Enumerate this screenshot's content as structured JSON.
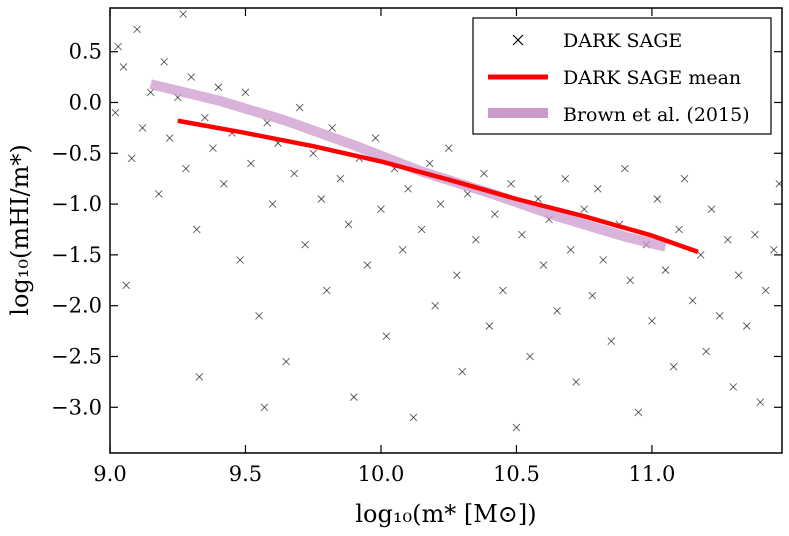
{
  "chart_data": {
    "type": "scatter",
    "xlabel": "log₁₀(m* [M⊙])",
    "ylabel": "log₁₀(mHI/m*)",
    "xlim": [
      9.0,
      11.48
    ],
    "ylim": [
      -3.45,
      0.93
    ],
    "xticks": [
      9.0,
      9.5,
      10.0,
      10.5,
      11.0
    ],
    "xtick_labels": [
      "9.0",
      "9.5",
      "10.0",
      "10.5",
      "11.0"
    ],
    "yticks": [
      0.5,
      0.0,
      -0.5,
      -1.0,
      -1.5,
      -2.0,
      -2.5,
      -3.0
    ],
    "ytick_labels": [
      "0.5",
      "0.0",
      "−0.5",
      "−1.0",
      "−1.5",
      "−2.0",
      "−2.5",
      "−3.0"
    ],
    "grid": false,
    "legend_location": "top-right",
    "series": [
      {
        "name": "Dark Sage",
        "legend_label": "DARK SAGE",
        "kind": "scatter",
        "marker": "x",
        "color": "#000000",
        "sample_points": [
          [
            9.02,
            -0.1
          ],
          [
            9.05,
            0.35
          ],
          [
            9.08,
            -0.55
          ],
          [
            9.1,
            0.72
          ],
          [
            9.12,
            -0.25
          ],
          [
            9.15,
            0.1
          ],
          [
            9.18,
            -0.9
          ],
          [
            9.2,
            0.4
          ],
          [
            9.22,
            -0.35
          ],
          [
            9.25,
            0.05
          ],
          [
            9.28,
            -0.65
          ],
          [
            9.3,
            0.25
          ],
          [
            9.32,
            -1.25
          ],
          [
            9.35,
            -0.15
          ],
          [
            9.38,
            -0.45
          ],
          [
            9.4,
            0.15
          ],
          [
            9.42,
            -0.8
          ],
          [
            9.45,
            -0.3
          ],
          [
            9.48,
            -1.55
          ],
          [
            9.5,
            0.1
          ],
          [
            9.52,
            -0.6
          ],
          [
            9.55,
            -2.1
          ],
          [
            9.58,
            -0.2
          ],
          [
            9.6,
            -1.0
          ],
          [
            9.62,
            -0.4
          ],
          [
            9.65,
            -2.55
          ],
          [
            9.68,
            -0.7
          ],
          [
            9.7,
            -0.05
          ],
          [
            9.72,
            -1.4
          ],
          [
            9.75,
            -0.5
          ],
          [
            9.78,
            -0.95
          ],
          [
            9.8,
            -1.85
          ],
          [
            9.82,
            -0.25
          ],
          [
            9.85,
            -0.75
          ],
          [
            9.88,
            -1.2
          ],
          [
            9.9,
            -2.9
          ],
          [
            9.92,
            -0.55
          ],
          [
            9.95,
            -1.6
          ],
          [
            9.98,
            -0.35
          ],
          [
            10.0,
            -1.05
          ],
          [
            10.02,
            -2.3
          ],
          [
            10.05,
            -0.65
          ],
          [
            10.08,
            -1.45
          ],
          [
            10.1,
            -0.85
          ],
          [
            10.12,
            -3.1
          ],
          [
            10.15,
            -1.25
          ],
          [
            10.18,
            -0.6
          ],
          [
            10.2,
            -2.0
          ],
          [
            10.22,
            -1.0
          ],
          [
            10.25,
            -0.45
          ],
          [
            10.28,
            -1.7
          ],
          [
            10.3,
            -2.65
          ],
          [
            10.32,
            -0.9
          ],
          [
            10.35,
            -1.35
          ],
          [
            10.38,
            -0.7
          ],
          [
            10.4,
            -2.2
          ],
          [
            10.42,
            -1.1
          ],
          [
            10.45,
            -1.85
          ],
          [
            10.48,
            -0.8
          ],
          [
            10.5,
            -3.2
          ],
          [
            10.52,
            -1.3
          ],
          [
            10.55,
            -2.5
          ],
          [
            10.58,
            -0.95
          ],
          [
            10.6,
            -1.6
          ],
          [
            10.62,
            -1.15
          ],
          [
            10.65,
            -2.05
          ],
          [
            10.68,
            -0.75
          ],
          [
            10.7,
            -1.45
          ],
          [
            10.72,
            -2.75
          ],
          [
            10.75,
            -1.05
          ],
          [
            10.78,
            -1.9
          ],
          [
            10.8,
            -0.85
          ],
          [
            10.82,
            -1.55
          ],
          [
            10.85,
            -2.35
          ],
          [
            10.88,
            -1.2
          ],
          [
            10.9,
            -0.65
          ],
          [
            10.92,
            -1.75
          ],
          [
            10.95,
            -3.05
          ],
          [
            10.98,
            -1.4
          ],
          [
            11.0,
            -2.15
          ],
          [
            11.02,
            -0.95
          ],
          [
            11.05,
            -1.65
          ],
          [
            11.08,
            -2.6
          ],
          [
            11.1,
            -1.25
          ],
          [
            11.12,
            -0.75
          ],
          [
            11.15,
            -1.95
          ],
          [
            11.18,
            -1.5
          ],
          [
            11.2,
            -2.45
          ],
          [
            11.22,
            -1.05
          ],
          [
            11.25,
            -2.1
          ],
          [
            11.28,
            -1.35
          ],
          [
            11.3,
            -2.8
          ],
          [
            11.32,
            -1.7
          ],
          [
            11.35,
            -2.2
          ],
          [
            11.38,
            -1.3
          ],
          [
            11.4,
            -2.95
          ],
          [
            11.42,
            -1.85
          ],
          [
            11.45,
            -1.45
          ],
          [
            11.47,
            -0.8
          ],
          [
            9.03,
            0.55
          ],
          [
            9.06,
            -1.8
          ],
          [
            9.27,
            0.87
          ],
          [
            9.33,
            -2.7
          ],
          [
            9.57,
            -3.0
          ]
        ]
      },
      {
        "name": "Dark Sage mean",
        "legend_label": "DARK SAGE mean",
        "kind": "line",
        "color": "#ff0000",
        "x": [
          9.25,
          9.5,
          9.75,
          10.0,
          10.25,
          10.5,
          10.75,
          11.0,
          11.17
        ],
        "y": [
          -0.18,
          -0.3,
          -0.43,
          -0.58,
          -0.76,
          -0.95,
          -1.12,
          -1.31,
          -1.47
        ]
      },
      {
        "name": "Brown et al. (2015)",
        "legend_label": "Brown et al. (2015)",
        "kind": "line",
        "color": "#cc99cc",
        "x": [
          9.15,
          9.4,
          9.65,
          9.9,
          10.15,
          10.4,
          10.65,
          10.9,
          11.05
        ],
        "y": [
          0.18,
          0.02,
          -0.18,
          -0.42,
          -0.68,
          -0.89,
          -1.12,
          -1.32,
          -1.42
        ]
      }
    ]
  }
}
